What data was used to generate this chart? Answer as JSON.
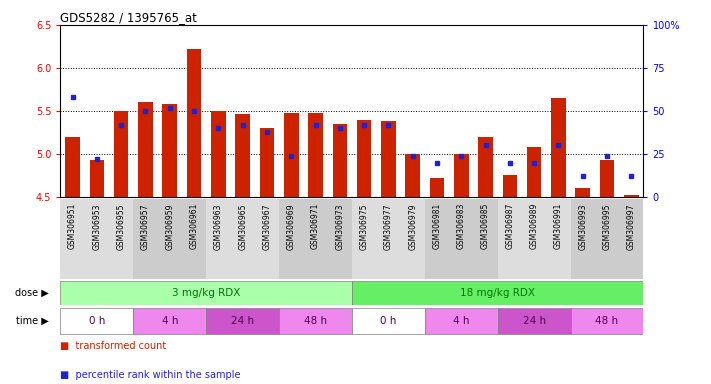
{
  "title": "GDS5282 / 1395765_at",
  "samples": [
    "GSM306951",
    "GSM306953",
    "GSM306955",
    "GSM306957",
    "GSM306959",
    "GSM306961",
    "GSM306963",
    "GSM306965",
    "GSM306967",
    "GSM306969",
    "GSM306971",
    "GSM306973",
    "GSM306975",
    "GSM306977",
    "GSM306979",
    "GSM306981",
    "GSM306983",
    "GSM306985",
    "GSM306987",
    "GSM306989",
    "GSM306991",
    "GSM306993",
    "GSM306995",
    "GSM306997"
  ],
  "transformed_count": [
    5.2,
    4.93,
    5.5,
    5.6,
    5.58,
    6.22,
    5.5,
    5.47,
    5.3,
    5.48,
    5.48,
    5.35,
    5.4,
    5.38,
    5.0,
    4.72,
    5.0,
    5.2,
    4.75,
    5.08,
    5.65,
    4.6,
    4.93,
    4.52
  ],
  "percentile_rank": [
    58,
    22,
    42,
    50,
    52,
    50,
    40,
    42,
    38,
    24,
    42,
    40,
    42,
    42,
    24,
    20,
    24,
    30,
    20,
    20,
    30,
    12,
    24,
    12
  ],
  "bar_color": "#cc2200",
  "dot_color": "#2222cc",
  "ylim_left": [
    4.5,
    6.5
  ],
  "ylim_right": [
    0,
    100
  ],
  "yticks_left": [
    4.5,
    5.0,
    5.5,
    6.0,
    6.5
  ],
  "yticks_right": [
    0,
    25,
    50,
    75,
    100
  ],
  "ytick_labels_right": [
    "0",
    "25",
    "50",
    "75",
    "100%"
  ],
  "grid_values": [
    5.0,
    5.5,
    6.0
  ],
  "xtick_group_colors": [
    "#dddddd",
    "#dddddd",
    "#dddddd",
    "#cccccc",
    "#cccccc",
    "#cccccc",
    "#dddddd",
    "#dddddd",
    "#dddddd",
    "#cccccc",
    "#cccccc",
    "#cccccc",
    "#dddddd",
    "#dddddd",
    "#dddddd",
    "#cccccc",
    "#cccccc",
    "#cccccc",
    "#dddddd",
    "#dddddd",
    "#dddddd",
    "#cccccc",
    "#cccccc",
    "#cccccc"
  ],
  "dose_groups": [
    {
      "label": "3 mg/kg RDX",
      "start": 0,
      "end": 12,
      "color": "#aaffaa"
    },
    {
      "label": "18 mg/kg RDX",
      "start": 12,
      "end": 24,
      "color": "#66ee66"
    }
  ],
  "time_groups": [
    {
      "label": "0 h",
      "start": 0,
      "end": 3,
      "color": "#ffffff"
    },
    {
      "label": "4 h",
      "start": 3,
      "end": 6,
      "color": "#ee88ee"
    },
    {
      "label": "24 h",
      "start": 6,
      "end": 9,
      "color": "#cc55cc"
    },
    {
      "label": "48 h",
      "start": 9,
      "end": 12,
      "color": "#ee88ee"
    },
    {
      "label": "0 h",
      "start": 12,
      "end": 15,
      "color": "#ffffff"
    },
    {
      "label": "4 h",
      "start": 15,
      "end": 18,
      "color": "#ee88ee"
    },
    {
      "label": "24 h",
      "start": 18,
      "end": 21,
      "color": "#cc55cc"
    },
    {
      "label": "48 h",
      "start": 21,
      "end": 24,
      "color": "#ee88ee"
    }
  ],
  "dose_label_color": "#007700",
  "time_label_color": "#550055",
  "bg_color": "#ffffff",
  "legend_items": [
    {
      "label": "transformed count",
      "color": "#cc2200"
    },
    {
      "label": "percentile rank within the sample",
      "color": "#2222cc"
    }
  ]
}
